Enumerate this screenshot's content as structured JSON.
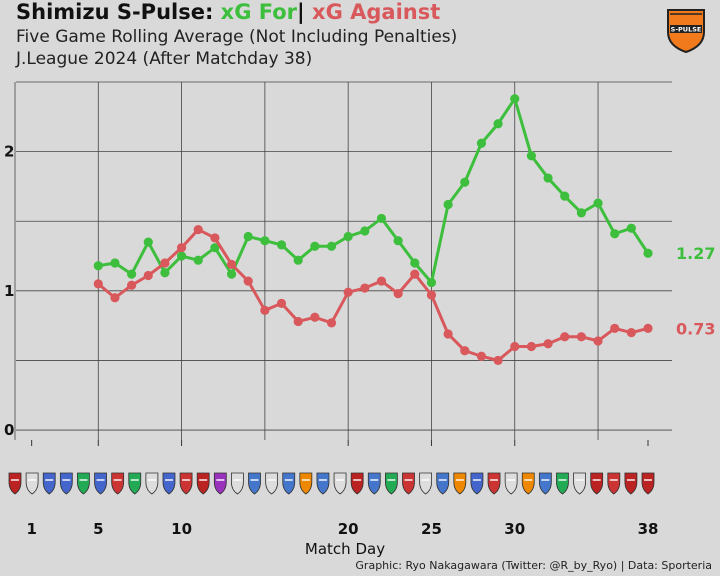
{
  "header": {
    "title_team": "Shimizu S-Pulse:",
    "title_for": "xG For",
    "title_sep": "|",
    "title_against": "xG Against",
    "subtitle1": "Five Game Rolling Average (Not Including Penalties)",
    "subtitle2": "J.League 2024 (After Matchday 38)"
  },
  "footer": {
    "credit": "Graphic: Ryo Nakagawara (Twitter: @R_by_Ryo) | Data: Sporteria"
  },
  "crest": {
    "text": "S-PULSE",
    "colors": {
      "primary": "#f07a1c",
      "secondary": "#222222"
    }
  },
  "colors": {
    "for": "#3dbf3d",
    "against": "#d9585c",
    "background": "#d9d9d9",
    "grid": "#333333"
  },
  "chart_data": {
    "type": "line",
    "xlabel": "Match Day",
    "ylabel": "",
    "x_ticks": [
      1,
      5,
      10,
      20,
      25,
      30,
      38
    ],
    "y_ticks": [
      0,
      1,
      2
    ],
    "xlim": [
      0,
      39.5
    ],
    "ylim": [
      -0.05,
      2.5
    ],
    "series": [
      {
        "name": "xG For",
        "color": "#3dbf3d",
        "x": [
          5,
          6,
          7,
          8,
          9,
          10,
          11,
          12,
          13,
          14,
          15,
          16,
          17,
          18,
          19,
          20,
          21,
          22,
          23,
          24,
          25,
          26,
          27,
          28,
          29,
          30,
          31,
          32,
          33,
          34,
          35,
          36,
          37,
          38
        ],
        "values": [
          1.18,
          1.2,
          1.12,
          1.35,
          1.13,
          1.25,
          1.22,
          1.31,
          1.12,
          1.39,
          1.36,
          1.33,
          1.22,
          1.32,
          1.32,
          1.39,
          1.43,
          1.52,
          1.36,
          1.2,
          1.06,
          1.62,
          1.78,
          2.06,
          2.2,
          2.38,
          1.97,
          1.81,
          1.68,
          1.56,
          1.63,
          1.41,
          1.45,
          1.27
        ],
        "end_label": "1.27"
      },
      {
        "name": "xG Against",
        "color": "#d9585c",
        "x": [
          5,
          6,
          7,
          8,
          9,
          10,
          11,
          12,
          13,
          14,
          15,
          16,
          17,
          18,
          19,
          20,
          21,
          22,
          23,
          24,
          25,
          26,
          27,
          28,
          29,
          30,
          31,
          32,
          33,
          34,
          35,
          36,
          37,
          38
        ],
        "values": [
          1.05,
          0.95,
          1.04,
          1.11,
          1.2,
          1.31,
          1.44,
          1.38,
          1.19,
          1.07,
          0.86,
          0.91,
          0.78,
          0.81,
          0.77,
          0.99,
          1.02,
          1.07,
          0.98,
          1.12,
          0.97,
          0.69,
          0.57,
          0.53,
          0.5,
          0.6,
          0.6,
          0.62,
          0.67,
          0.67,
          0.64,
          0.73,
          0.7,
          0.73
        ],
        "end_label": "0.73"
      }
    ],
    "grid": true,
    "legend": "title"
  }
}
